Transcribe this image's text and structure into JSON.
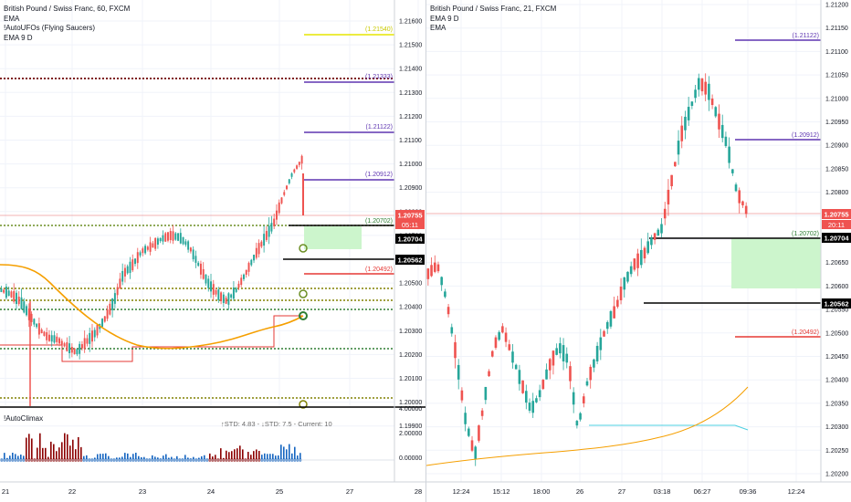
{
  "left_chart": {
    "title": "British Pound / Swiss Franc, 60, FXCM",
    "indicators": [
      "EMA",
      "!AutoUFOs (Flying Saucers)",
      "EMA 9 D"
    ],
    "price_axis": [
      "1.21600",
      "1.21500",
      "1.21400",
      "1.21300",
      "1.21200",
      "1.21100",
      "1.21000",
      "1.20900",
      "1.20800",
      "1.20700",
      "1.20600",
      "1.20500",
      "1.20400",
      "1.20300",
      "1.20200",
      "1.20100",
      "1.20000",
      "1.19900"
    ],
    "time_axis": [
      "21",
      "22",
      "23",
      "24",
      "25",
      "27",
      "28"
    ],
    "level_labels": {
      "yellow": "(1.21540)",
      "purple_top": "(1.21333)",
      "purple_1": "(1.21122)",
      "purple_2": "(1.20912)",
      "green": "(1.20702)",
      "red": "(1.20492)"
    },
    "price_tags": {
      "current": "1.20755",
      "countdown": "05:11",
      "level_1": "1.20704",
      "level_2": "1.20562"
    },
    "subpanel": {
      "title": "!AutoClimax",
      "stats": "↑STD: 4.83 - ↓STD: 7.5 - Current: 10",
      "axis": [
        "4.00000",
        "2.00000",
        "0.00000"
      ]
    }
  },
  "right_chart": {
    "title": "British Pound / Swiss Franc, 21, FXCM",
    "indicators": [
      "EMA 9 D",
      "EMA"
    ],
    "price_axis": [
      "1.21200",
      "1.21150",
      "1.21100",
      "1.21050",
      "1.21000",
      "1.20950",
      "1.20900",
      "1.20850",
      "1.20800",
      "1.20750",
      "1.20700",
      "1.20650",
      "1.20600",
      "1.20550",
      "1.20500",
      "1.20450",
      "1.20400",
      "1.20350",
      "1.20300",
      "1.20250",
      "1.20200"
    ],
    "time_axis": [
      "12:24",
      "15:12",
      "18:00",
      "26",
      "27",
      "03:18",
      "06:27",
      "09:36",
      "12:24"
    ],
    "level_labels": {
      "purple_1": "(1.21122)",
      "purple_2": "(1.20912)",
      "green": "(1.20702)",
      "red": "(1.20492)"
    },
    "price_tags": {
      "current": "1.20755",
      "countdown": "20:11",
      "level_1": "1.20704",
      "level_2": "1.20562"
    }
  },
  "colors": {
    "bull": "#26a69a",
    "bear": "#ef5350",
    "ema_orange": "#f59f00",
    "purple": "#5e35b1",
    "dark_red_dotted": "#7f1d1d",
    "yellow": "#e6e600",
    "olive_dotted": "#808000",
    "green_dotted": "#2e7d32",
    "green_zone": "#ccf5cc",
    "red_line": "#e53935",
    "cyan": "#4dd0e1",
    "black": "#000000",
    "grid": "#f0f3fa"
  }
}
